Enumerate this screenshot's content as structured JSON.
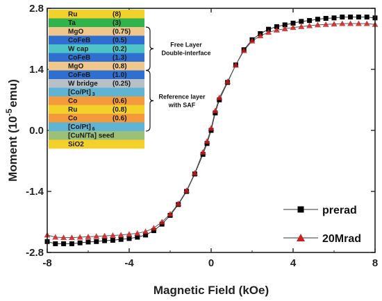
{
  "chart_data": {
    "type": "scatter",
    "xlabel": "Magnetic Field (kOe)",
    "ylabel_prefix": "Moment (10",
    "ylabel_exp": "-5",
    "ylabel_suffix": "emu)",
    "xlim": [
      -8,
      8
    ],
    "ylim": [
      -2.8,
      2.8
    ],
    "xticks": [
      -8,
      -4,
      0,
      4,
      8
    ],
    "xtick_labels": [
      "-8",
      "-4",
      "0",
      "4",
      "8"
    ],
    "yticks": [
      -2.8,
      -1.4,
      0.0,
      1.4,
      2.8
    ],
    "ytick_labels": [
      "-2.8",
      "-1.4",
      "0.0",
      "1.4",
      "2.8"
    ],
    "legend_position": "bottom-right",
    "series": [
      {
        "name": "prerad",
        "marker": "square",
        "color": "#000000",
        "x": [
          -8.0,
          -7.6,
          -7.2,
          -6.8,
          -6.4,
          -6.0,
          -5.6,
          -5.2,
          -4.8,
          -4.4,
          -4.0,
          -3.6,
          -3.2,
          -2.8,
          -2.4,
          -2.0,
          -1.6,
          -1.2,
          -0.8,
          -0.4,
          -0.2,
          0.0,
          0.2,
          0.4,
          0.8,
          1.2,
          1.6,
          2.0,
          2.4,
          2.8,
          3.2,
          3.6,
          4.0,
          4.4,
          4.8,
          5.2,
          5.6,
          6.0,
          6.4,
          6.8,
          7.2,
          7.6,
          8.0
        ],
        "y": [
          -2.55,
          -2.6,
          -2.6,
          -2.6,
          -2.58,
          -2.56,
          -2.55,
          -2.53,
          -2.52,
          -2.5,
          -2.48,
          -2.45,
          -2.4,
          -2.3,
          -2.15,
          -1.95,
          -1.7,
          -1.4,
          -1.0,
          -0.55,
          -0.3,
          0.0,
          0.4,
          0.7,
          1.1,
          1.5,
          1.85,
          2.08,
          2.22,
          2.32,
          2.38,
          2.42,
          2.46,
          2.5,
          2.52,
          2.55,
          2.57,
          2.58,
          2.6,
          2.6,
          2.6,
          2.6,
          2.58
        ]
      },
      {
        "name": "20Mrad",
        "marker": "triangle",
        "color": "#cc1f1f",
        "x": [
          -8.0,
          -7.6,
          -7.2,
          -6.8,
          -6.4,
          -6.0,
          -5.6,
          -5.2,
          -4.8,
          -4.4,
          -4.0,
          -3.6,
          -3.2,
          -2.8,
          -2.4,
          -2.0,
          -1.6,
          -1.2,
          -0.8,
          -0.4,
          -0.2,
          0.0,
          0.2,
          0.4,
          0.8,
          1.2,
          1.6,
          2.0,
          2.4,
          2.8,
          3.2,
          3.6,
          4.0,
          4.4,
          4.8,
          5.2,
          5.6,
          6.0,
          6.4,
          6.8,
          7.2,
          7.6,
          8.0
        ],
        "y": [
          -2.4,
          -2.45,
          -2.46,
          -2.46,
          -2.45,
          -2.44,
          -2.43,
          -2.42,
          -2.41,
          -2.4,
          -2.38,
          -2.36,
          -2.32,
          -2.24,
          -2.1,
          -1.92,
          -1.68,
          -1.38,
          -0.98,
          -0.5,
          -0.25,
          0.05,
          0.45,
          0.75,
          1.12,
          1.5,
          1.83,
          2.05,
          2.17,
          2.25,
          2.3,
          2.33,
          2.36,
          2.38,
          2.4,
          2.42,
          2.43,
          2.44,
          2.45,
          2.45,
          2.45,
          2.45,
          2.43
        ]
      }
    ]
  },
  "stack": {
    "layers": [
      {
        "name": "Ru",
        "value": "(8)",
        "color": "#f2d12a"
      },
      {
        "name": "Ta",
        "value": "(3)",
        "color": "#2fb34a"
      },
      {
        "name": "MgO",
        "value": "(0.75)",
        "color": "#f0c78a"
      },
      {
        "name": "CoFeB",
        "value": "(0.5)",
        "color": "#2f6fd0"
      },
      {
        "name": "W cap",
        "value": "(0.2)",
        "color": "#4ec3c8"
      },
      {
        "name": "CoFeB",
        "value": "(1.3)",
        "color": "#2f6fd0"
      },
      {
        "name": "MgO",
        "value": "(0.8)",
        "color": "#f0c78a"
      },
      {
        "name": "CoFeB",
        "value": "(1.0)",
        "color": "#2f6fd0"
      },
      {
        "name": "W bridge",
        "value": "(0.25)",
        "color": "#b7c0c6"
      },
      {
        "name": "[Co/Pt]",
        "sub": "3",
        "value": "",
        "color": "#5fb3d3"
      },
      {
        "name": "Co",
        "value": "(0.6)",
        "color": "#f29a3c"
      },
      {
        "name": "Ru",
        "value": "(0.8)",
        "color": "#f2d12a"
      },
      {
        "name": "Co",
        "value": "(0.6)",
        "color": "#f29a3c"
      },
      {
        "name": "[Co/Pt]",
        "sub": "6",
        "value": "",
        "color": "#5fb3d3"
      },
      {
        "name": "[CuN/Ta] seed",
        "value": "",
        "color": "#9cc07a"
      },
      {
        "name": "SiO2",
        "value": "",
        "color": "#f2d12a"
      }
    ],
    "free_layer_label_1": "Free Layer",
    "free_layer_label_2": "Double-interface",
    "reference_label_1": "Reference layer",
    "reference_label_2": "with SAF"
  },
  "colors": {
    "prerad": "#000000",
    "irradiated": "#cc1f1f"
  }
}
